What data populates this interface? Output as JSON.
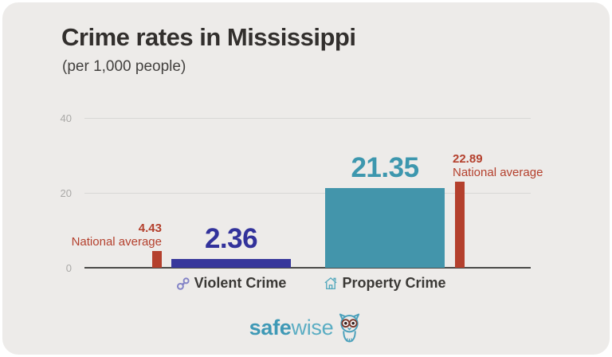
{
  "header": {
    "title": "Crime rates in Mississippi",
    "subtitle": "(per 1,000 people)"
  },
  "chart_data": {
    "type": "bar",
    "title": "Crime rates in Mississippi",
    "subtitle": "(per 1,000 people)",
    "ylim": [
      0,
      40
    ],
    "yticks": [
      0,
      20,
      40
    ],
    "grid": true,
    "categories": [
      "Violent Crime",
      "Property Crime"
    ],
    "category_icons": [
      "handcuffs-icon",
      "house-icon"
    ],
    "series": [
      {
        "name": "Mississippi",
        "values": [
          2.36,
          21.35
        ],
        "value_labels": [
          "2.36",
          "21.35"
        ],
        "bar_colors": [
          "#37379b",
          "#4395ab"
        ],
        "label_colors": [
          "#32329b",
          "#3d97ae"
        ]
      },
      {
        "name": "National average",
        "values": [
          4.43,
          22.89
        ],
        "value_labels": [
          "4.43",
          "22.89"
        ],
        "annotation_text": "National average",
        "annotation_sides": [
          "left",
          "right"
        ],
        "bar_color": "#b4402d",
        "label_color": "#b4402d"
      }
    ]
  },
  "colors": {
    "card_background": "#edebe9",
    "outer_background": "#ffffff",
    "gridline": "#d8d7d5",
    "axis": "#4a4a48",
    "tick_text": "#aaa9a7",
    "violent_icon": "#8282c6",
    "property_icon": "#55a9bd",
    "logo_teal": "#4aa0bb",
    "owl_eye_rim": "#7a3a2e"
  },
  "footer": {
    "logo_bold": "safe",
    "logo_regular": "wise",
    "logo_icon": "owl-icon"
  }
}
